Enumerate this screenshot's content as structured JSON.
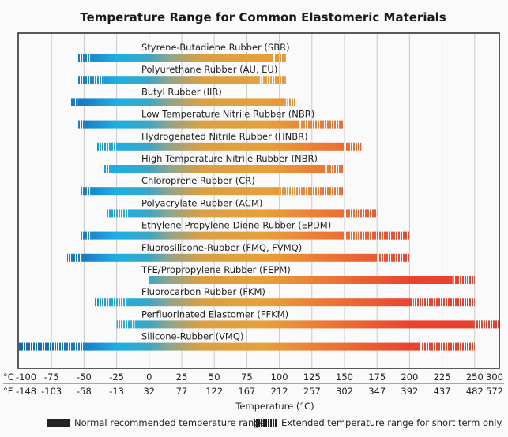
{
  "chart_data": {
    "type": "bar",
    "subtype": "range",
    "title": "Temperature Range for Common Elastomeric Materials",
    "xlabel": "Temperature (°C)",
    "xlim": [
      -100,
      300
    ],
    "grid": true,
    "unit_labels": {
      "celsius": "°C",
      "fahrenheit": "°F"
    },
    "ticks_c": [
      "-100",
      "-75",
      "-50",
      "-25",
      "0",
      "25",
      "50",
      "75",
      "100",
      "125",
      "150",
      "175",
      "200",
      "225",
      "250",
      "300"
    ],
    "ticks_f": [
      "-148",
      "-103",
      "-58",
      "-13",
      "32",
      "77",
      "122",
      "167",
      "212",
      "257",
      "302",
      "347",
      "392",
      "437",
      "482",
      "572"
    ],
    "legend": {
      "placement": "bottom",
      "normal": "Normal recommended temperature range",
      "extended": "Extended temperature range for short term only."
    },
    "colors": {
      "cold": "#1a7cc6",
      "cool": "#1eaee4",
      "warm": "#e6a03a",
      "hot": "#ea442f"
    },
    "materials": [
      {
        "name": "Styrene-Butadiene Rubber (SBR)",
        "ext_min": -55,
        "min": -45,
        "max": 95,
        "ext_max": 105
      },
      {
        "name": "Polyurethane Rubber (AU, EU)",
        "ext_min": -55,
        "min": -35,
        "max": 85,
        "ext_max": 105
      },
      {
        "name": "Butyl Rubber (IIR)",
        "ext_min": -60,
        "min": -55,
        "max": 105,
        "ext_max": 112
      },
      {
        "name": "Low Temperature Nitrile Rubber (NBR)",
        "ext_min": -55,
        "min": -50,
        "max": 115,
        "ext_max": 150
      },
      {
        "name": "Hydrogenated Nitrile Rubber (HNBR)",
        "ext_min": -40,
        "min": -25,
        "max": 150,
        "ext_max": 163
      },
      {
        "name": "High Temperature Nitrile Rubber (NBR)",
        "ext_min": -35,
        "min": -30,
        "max": 135,
        "ext_max": 150
      },
      {
        "name": "Chloroprene Rubber (CR)",
        "ext_min": -52,
        "min": -45,
        "max": 100,
        "ext_max": 150
      },
      {
        "name": "Polyacrylate Rubber (ACM)",
        "ext_min": -33,
        "min": -15,
        "max": 150,
        "ext_max": 175
      },
      {
        "name": "Ethylene-Propylene-Diene-Rubber (EPDM)",
        "ext_min": -52,
        "min": -45,
        "max": 150,
        "ext_max": 200
      },
      {
        "name": "Fluorosilicone-Rubber (FMQ, FVMQ)",
        "ext_min": -63,
        "min": -52,
        "max": 175,
        "ext_max": 200
      },
      {
        "name": "TFE/Propropylene Rubber (FEPM)",
        "ext_min": 0,
        "min": 0,
        "max": 233,
        "ext_max": 250
      },
      {
        "name": "Fluorocarbon Rubber (FKM)",
        "ext_min": -42,
        "min": -17,
        "max": 202,
        "ext_max": 250
      },
      {
        "name": "Perfluorinated Elastomer (FFKM)",
        "ext_min": -25,
        "min": -11,
        "max": 250,
        "ext_max": 300
      },
      {
        "name": "Silicone-Rubber (VMQ)",
        "ext_min": -100,
        "min": -50,
        "max": 208,
        "ext_max": 250
      }
    ]
  }
}
